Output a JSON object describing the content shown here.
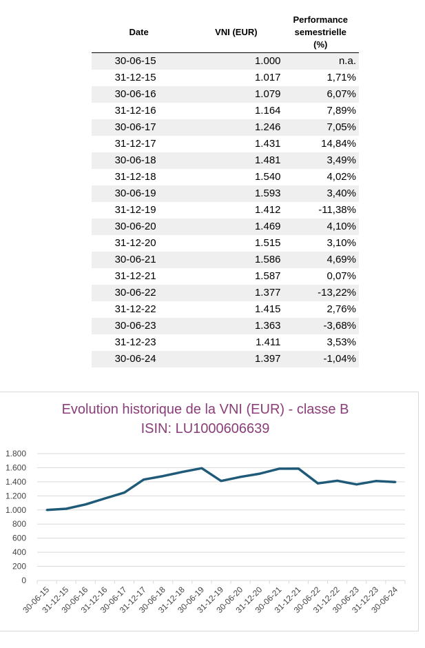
{
  "table": {
    "headers": {
      "date": "Date",
      "vni": "VNI (EUR)",
      "perf_line1": "Performance",
      "perf_line2": "semestrielle",
      "perf_line3": "(%)"
    },
    "rows": [
      {
        "date": "30-06-15",
        "vni": "1.000",
        "perf": "n.a."
      },
      {
        "date": "31-12-15",
        "vni": "1.017",
        "perf": "1,71%"
      },
      {
        "date": "30-06-16",
        "vni": "1.079",
        "perf": "6,07%"
      },
      {
        "date": "31-12-16",
        "vni": "1.164",
        "perf": "7,89%"
      },
      {
        "date": "30-06-17",
        "vni": "1.246",
        "perf": "7,05%"
      },
      {
        "date": "31-12-17",
        "vni": "1.431",
        "perf": "14,84%"
      },
      {
        "date": "30-06-18",
        "vni": "1.481",
        "perf": "3,49%"
      },
      {
        "date": "31-12-18",
        "vni": "1.540",
        "perf": "4,02%"
      },
      {
        "date": "30-06-19",
        "vni": "1.593",
        "perf": "3,40%"
      },
      {
        "date": "31-12-19",
        "vni": "1.412",
        "perf": "-11,38%"
      },
      {
        "date": "30-06-20",
        "vni": "1.469",
        "perf": "4,10%"
      },
      {
        "date": "31-12-20",
        "vni": "1.515",
        "perf": "3,10%"
      },
      {
        "date": "30-06-21",
        "vni": "1.586",
        "perf": "4,69%"
      },
      {
        "date": "31-12-21",
        "vni": "1.587",
        "perf": "0,07%"
      },
      {
        "date": "30-06-22",
        "vni": "1.377",
        "perf": "-13,22%"
      },
      {
        "date": "31-12-22",
        "vni": "1.415",
        "perf": "2,76%"
      },
      {
        "date": "30-06-23",
        "vni": "1.363",
        "perf": "-3,68%"
      },
      {
        "date": "31-12-23",
        "vni": "1.411",
        "perf": "3,53%"
      },
      {
        "date": "30-06-24",
        "vni": "1.397",
        "perf": "-1,04%"
      }
    ]
  },
  "chart_data": {
    "type": "line",
    "title_line1": "Evolution historique de la VNI (EUR) - classe B",
    "title_line2": "ISIN: LU1000606639",
    "xlabel": "",
    "ylabel": "",
    "x": [
      "30-06-15",
      "31-12-15",
      "30-06-16",
      "31-12-16",
      "30-06-17",
      "31-12-17",
      "30-06-18",
      "31-12-18",
      "30-06-19",
      "31-12-19",
      "30-06-20",
      "31-12-20",
      "30-06-21",
      "31-12-21",
      "30-06-22",
      "31-12-22",
      "30-06-23",
      "31-12-23",
      "30-06-24"
    ],
    "series": [
      {
        "values": [
          1000,
          1017,
          1079,
          1164,
          1246,
          1431,
          1481,
          1540,
          1593,
          1412,
          1469,
          1515,
          1586,
          1587,
          1377,
          1415,
          1363,
          1411,
          1397
        ]
      }
    ],
    "ylim": [
      0,
      1800
    ],
    "yticks": [
      0,
      200,
      400,
      600,
      800,
      1000,
      1200,
      1400,
      1600,
      1800
    ],
    "ytick_labels": [
      "0",
      "200",
      "400",
      "600",
      "800",
      "1.000",
      "1.200",
      "1.400",
      "1.600",
      "1.800"
    ],
    "grid": true,
    "legend": "none",
    "colors": {
      "line": "#1f5b78",
      "title": "#8a3d78",
      "grid": "#d9d9d9"
    }
  }
}
